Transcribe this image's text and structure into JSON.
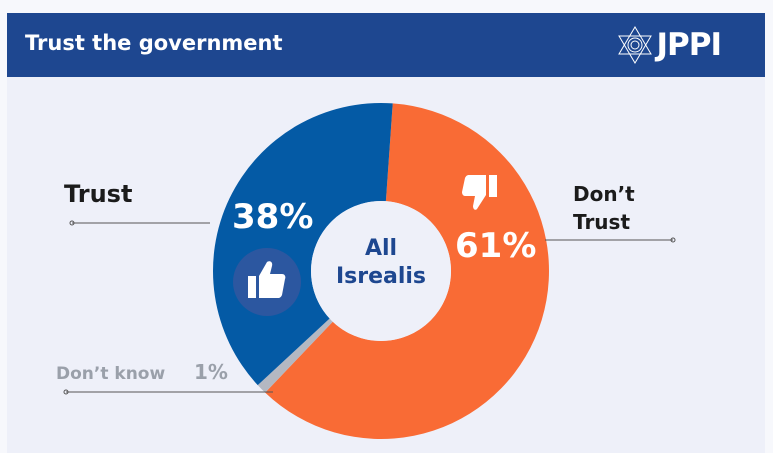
{
  "header": {
    "title": "Trust the government",
    "logo_text": "JPPI"
  },
  "chart_data": {
    "type": "pie",
    "title": "Trust the government",
    "center_label": [
      "All",
      "Isrealis"
    ],
    "slices": [
      {
        "label": "Don't Trust",
        "label_lines": [
          "Don’t",
          "Trust"
        ],
        "value": 61,
        "value_label": "61%",
        "color": "#f96b35",
        "icon": "thumbs-down-icon"
      },
      {
        "label": "Don't know",
        "label_lines": [
          "Don’t know"
        ],
        "value": 1,
        "value_label": "1%",
        "color": "#b4b8c2"
      },
      {
        "label": "Trust",
        "label_lines": [
          "Trust"
        ],
        "value": 38,
        "value_label": "38%",
        "color": "#045aa5",
        "icon": "thumbs-up-icon"
      }
    ],
    "start_angle_deg": 4
  }
}
